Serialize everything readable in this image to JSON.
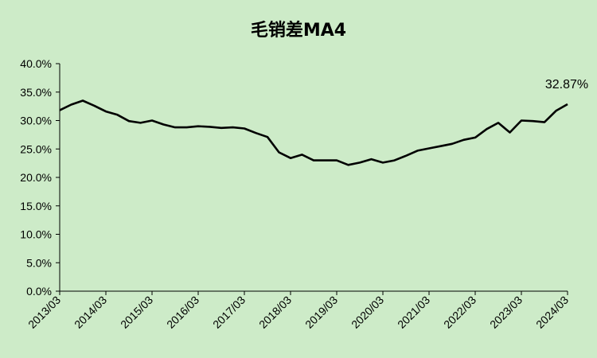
{
  "chart_data": {
    "type": "line",
    "title": "毛销差MA4",
    "xlabel": "",
    "ylabel": "",
    "ylim": [
      0,
      40
    ],
    "y_ticks": [
      "0.0%",
      "5.0%",
      "10.0%",
      "15.0%",
      "20.0%",
      "25.0%",
      "30.0%",
      "35.0%",
      "40.0%"
    ],
    "x_tick_labels": [
      "2013/03",
      "2014/03",
      "2015/03",
      "2016/03",
      "2017/03",
      "2018/03",
      "2019/03",
      "2020/03",
      "2021/03",
      "2022/03",
      "2023/03",
      "2024/03"
    ],
    "grid": false,
    "legend": "none",
    "line_color": "#000000",
    "annotation": "32.87%",
    "x": [
      "2013/03",
      "2013/06",
      "2013/09",
      "2013/12",
      "2014/03",
      "2014/06",
      "2014/09",
      "2014/12",
      "2015/03",
      "2015/06",
      "2015/09",
      "2015/12",
      "2016/03",
      "2016/06",
      "2016/09",
      "2016/12",
      "2017/03",
      "2017/06",
      "2017/09",
      "2017/12",
      "2018/03",
      "2018/06",
      "2018/09",
      "2018/12",
      "2019/03",
      "2019/06",
      "2019/09",
      "2019/12",
      "2020/03",
      "2020/06",
      "2020/09",
      "2020/12",
      "2021/03",
      "2021/06",
      "2021/09",
      "2021/12",
      "2022/03",
      "2022/06",
      "2022/09",
      "2022/12",
      "2023/03",
      "2023/06",
      "2023/09",
      "2023/12",
      "2024/03"
    ],
    "series": [
      {
        "values": [
          31.8,
          32.8,
          33.5,
          32.6,
          31.6,
          31.0,
          29.9,
          29.6,
          30.0,
          29.3,
          28.8,
          28.8,
          29.0,
          28.9,
          28.7,
          28.8,
          28.6,
          27.8,
          27.1,
          24.4,
          23.4,
          24.0,
          23.0,
          23.0,
          23.0,
          22.2,
          22.6,
          23.2,
          22.6,
          23.0,
          23.8,
          24.7,
          25.1,
          25.5,
          25.9,
          26.6,
          27.0,
          28.5,
          29.6,
          27.9,
          30.0,
          29.9,
          29.7,
          31.7,
          32.87
        ]
      }
    ]
  }
}
